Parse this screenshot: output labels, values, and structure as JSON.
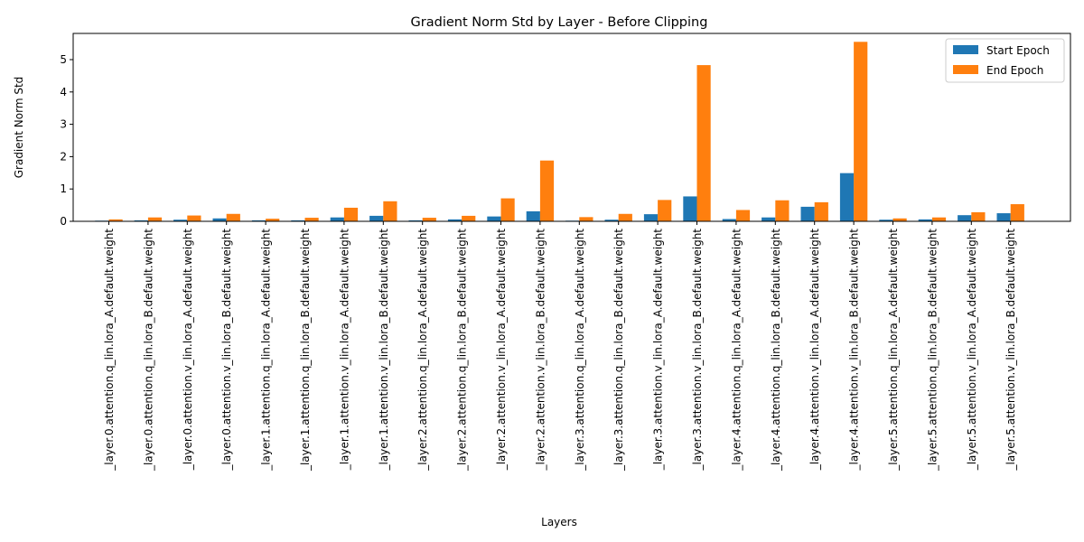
{
  "chart_data": {
    "type": "bar",
    "title": "Gradient Norm Std by Layer - Before Clipping",
    "xlabel": "Layers",
    "ylabel": "Gradient Norm Std",
    "ylim": [
      0,
      5.8
    ],
    "yticks": [
      0,
      1,
      2,
      3,
      4,
      5
    ],
    "grid": false,
    "legend_position": "top-right",
    "categories": [
      "_layer.0.attention.q_lin.lora_A.default.weight",
      "_layer.0.attention.q_lin.lora_B.default.weight",
      "_layer.0.attention.v_lin.lora_A.default.weight",
      "_layer.0.attention.v_lin.lora_B.default.weight",
      "_layer.1.attention.q_lin.lora_A.default.weight",
      "_layer.1.attention.q_lin.lora_B.default.weight",
      "_layer.1.attention.v_lin.lora_A.default.weight",
      "_layer.1.attention.v_lin.lora_B.default.weight",
      "_layer.2.attention.q_lin.lora_A.default.weight",
      "_layer.2.attention.q_lin.lora_B.default.weight",
      "_layer.2.attention.v_lin.lora_A.default.weight",
      "_layer.2.attention.v_lin.lora_B.default.weight",
      "_layer.3.attention.q_lin.lora_A.default.weight",
      "_layer.3.attention.q_lin.lora_B.default.weight",
      "_layer.3.attention.v_lin.lora_A.default.weight",
      "_layer.3.attention.v_lin.lora_B.default.weight",
      "_layer.4.attention.q_lin.lora_A.default.weight",
      "_layer.4.attention.q_lin.lora_B.default.weight",
      "_layer.4.attention.v_lin.lora_A.default.weight",
      "_layer.4.attention.v_lin.lora_B.default.weight",
      "_layer.5.attention.q_lin.lora_A.default.weight",
      "_layer.5.attention.q_lin.lora_B.default.weight",
      "_layer.5.attention.v_lin.lora_A.default.weight",
      "_layer.5.attention.v_lin.lora_B.default.weight"
    ],
    "series": [
      {
        "name": "Start Epoch",
        "color": "#1f77b4",
        "values": [
          0.02,
          0.03,
          0.05,
          0.09,
          0.03,
          0.03,
          0.12,
          0.17,
          0.03,
          0.06,
          0.15,
          0.31,
          0.02,
          0.05,
          0.22,
          0.77,
          0.07,
          0.12,
          0.45,
          1.49,
          0.05,
          0.06,
          0.19,
          0.25
        ]
      },
      {
        "name": "End Epoch",
        "color": "#ff7f0e",
        "values": [
          0.06,
          0.12,
          0.18,
          0.23,
          0.08,
          0.11,
          0.42,
          0.62,
          0.11,
          0.17,
          0.71,
          1.88,
          0.13,
          0.23,
          0.66,
          4.83,
          0.35,
          0.65,
          0.59,
          5.55,
          0.09,
          0.12,
          0.28,
          0.53
        ]
      }
    ]
  }
}
